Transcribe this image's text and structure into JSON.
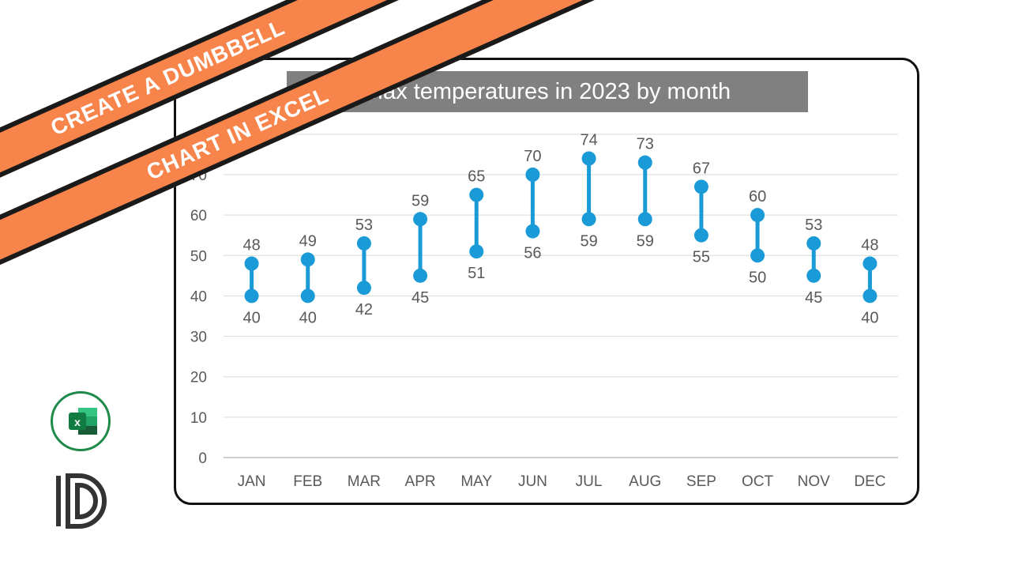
{
  "banner": {
    "line1": "CREATE A DUMBBELL",
    "line2": "CHART IN EXCEL"
  },
  "colors": {
    "accent": "#f7844a",
    "series": "#1a9bd7",
    "axis_text": "#595959",
    "grid": "#d9d9d9",
    "title_bg": "#808080"
  },
  "icons": {
    "excel": "excel-logo-icon",
    "brand": "d-brand-logo-icon"
  },
  "chart_data": {
    "type": "dumbbell",
    "title": "Max temperatures in 2023 by month",
    "categories": [
      "JAN",
      "FEB",
      "MAR",
      "APR",
      "MAY",
      "JUN",
      "JUL",
      "AUG",
      "SEP",
      "OCT",
      "NOV",
      "DEC"
    ],
    "series": [
      {
        "values": [
          40,
          40,
          42,
          45,
          51,
          56,
          59,
          59,
          55,
          50,
          45,
          40
        ]
      },
      {
        "values": [
          48,
          49,
          53,
          59,
          65,
          70,
          74,
          73,
          67,
          60,
          53,
          48
        ]
      }
    ],
    "y_ticks": [
      0,
      10,
      20,
      30,
      40,
      50,
      60,
      70
    ],
    "ylim": [
      0,
      80
    ],
    "grid": true,
    "legend": "none"
  }
}
